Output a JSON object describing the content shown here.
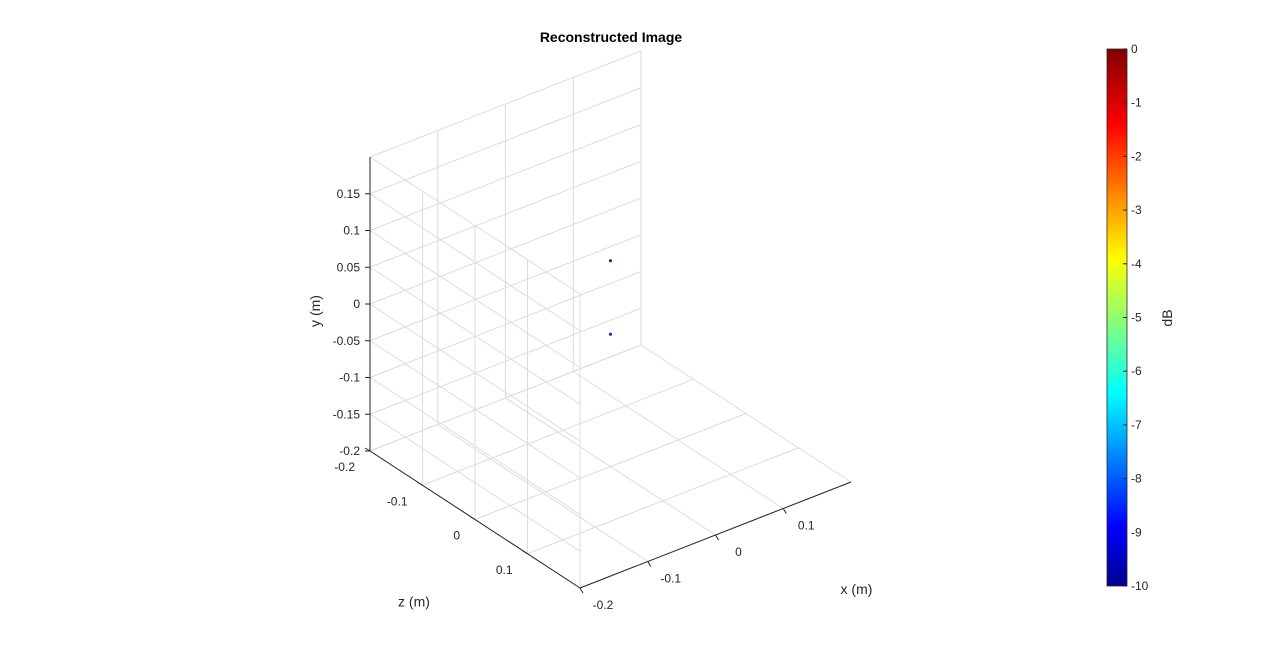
{
  "chart_data": {
    "type": "scatter",
    "title": "Reconstructed Image",
    "xlabel": "x (m)",
    "ylabel": "y (m)",
    "zlabel": "z (m)",
    "x_ticks": [
      "-0.2",
      "-0.1",
      "0",
      "0.1"
    ],
    "y_ticks": [
      "-0.2",
      "-0.15",
      "-0.1",
      "-0.05",
      "0",
      "0.05",
      "0.1",
      "0.15"
    ],
    "z_ticks": [
      "-0.2",
      "-0.1",
      "0",
      "0.1"
    ],
    "xlim": [
      -0.2,
      0.2
    ],
    "ylim": [
      -0.2,
      0.2
    ],
    "zlim": [
      -0.2,
      0.2
    ],
    "grid": true,
    "points": [
      {
        "x": 0.0,
        "y": 0.08,
        "z": 0.0,
        "value_db": -9
      },
      {
        "x": 0.0,
        "y": -0.02,
        "z": 0.0,
        "value_db": -9
      }
    ],
    "colorbar": {
      "label": "dB",
      "range": [
        -10,
        0
      ],
      "ticks": [
        "0",
        "-1",
        "-2",
        "-3",
        "-4",
        "-5",
        "-6",
        "-7",
        "-8",
        "-9",
        "-10"
      ],
      "colormap": "jet"
    }
  }
}
